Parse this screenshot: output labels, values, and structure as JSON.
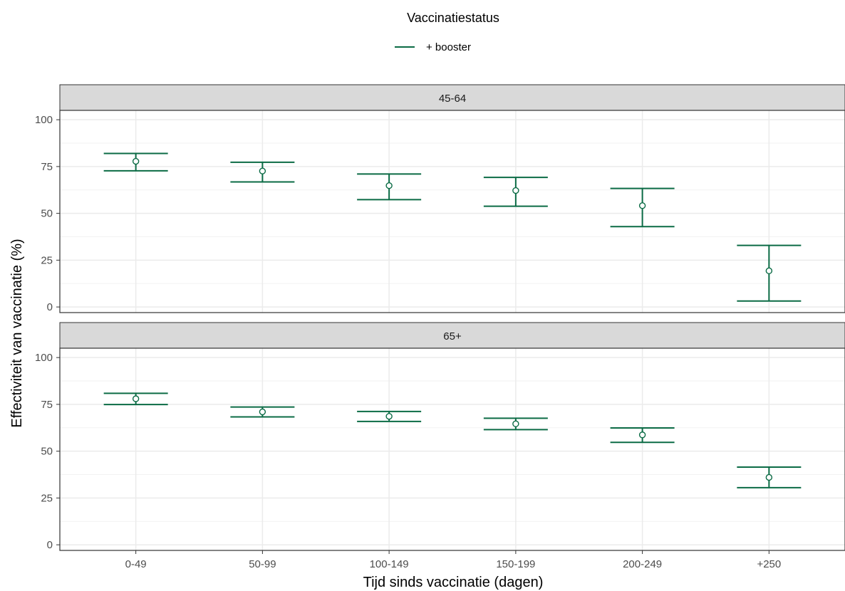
{
  "legend": {
    "title": "Vaccinatiestatus",
    "items": [
      {
        "label": "+ booster",
        "color": "#0b6b45"
      }
    ]
  },
  "axes": {
    "xlabel": "Tijd sinds vaccinatie (dagen)",
    "ylabel": "Effectiviteit van vaccinatie (%)"
  },
  "chart_data": {
    "type": "errorbar",
    "categories": [
      "0-49",
      "50-99",
      "100-149",
      "150-199",
      "200-249",
      "+250"
    ],
    "xlabel": "Tijd sinds vaccinatie (dagen)",
    "ylabel": "Effectiviteit van vaccinatie (%)",
    "ylim": [
      -3,
      105
    ],
    "yticks": [
      0,
      25,
      50,
      75,
      100
    ],
    "grid": true,
    "legend_position": "top",
    "color": "#0b6b45",
    "facets": [
      {
        "label": "45-64",
        "series": [
          {
            "name": "+ booster",
            "estimate": [
              77.8,
              72.6,
              64.8,
              62.2,
              54.1,
              19.3
            ],
            "lower": [
              72.7,
              66.8,
              57.3,
              53.8,
              42.9,
              3.2
            ],
            "upper": [
              82.0,
              77.3,
              71.0,
              69.2,
              63.3,
              32.9
            ]
          }
        ]
      },
      {
        "label": "65+",
        "series": [
          {
            "name": "+ booster",
            "estimate": [
              78.0,
              71.0,
              68.6,
              64.6,
              58.7,
              36.0
            ],
            "lower": [
              74.9,
              68.3,
              65.9,
              61.5,
              54.7,
              30.5
            ],
            "upper": [
              80.9,
              73.6,
              71.2,
              67.6,
              62.4,
              41.5
            ]
          }
        ]
      }
    ]
  }
}
